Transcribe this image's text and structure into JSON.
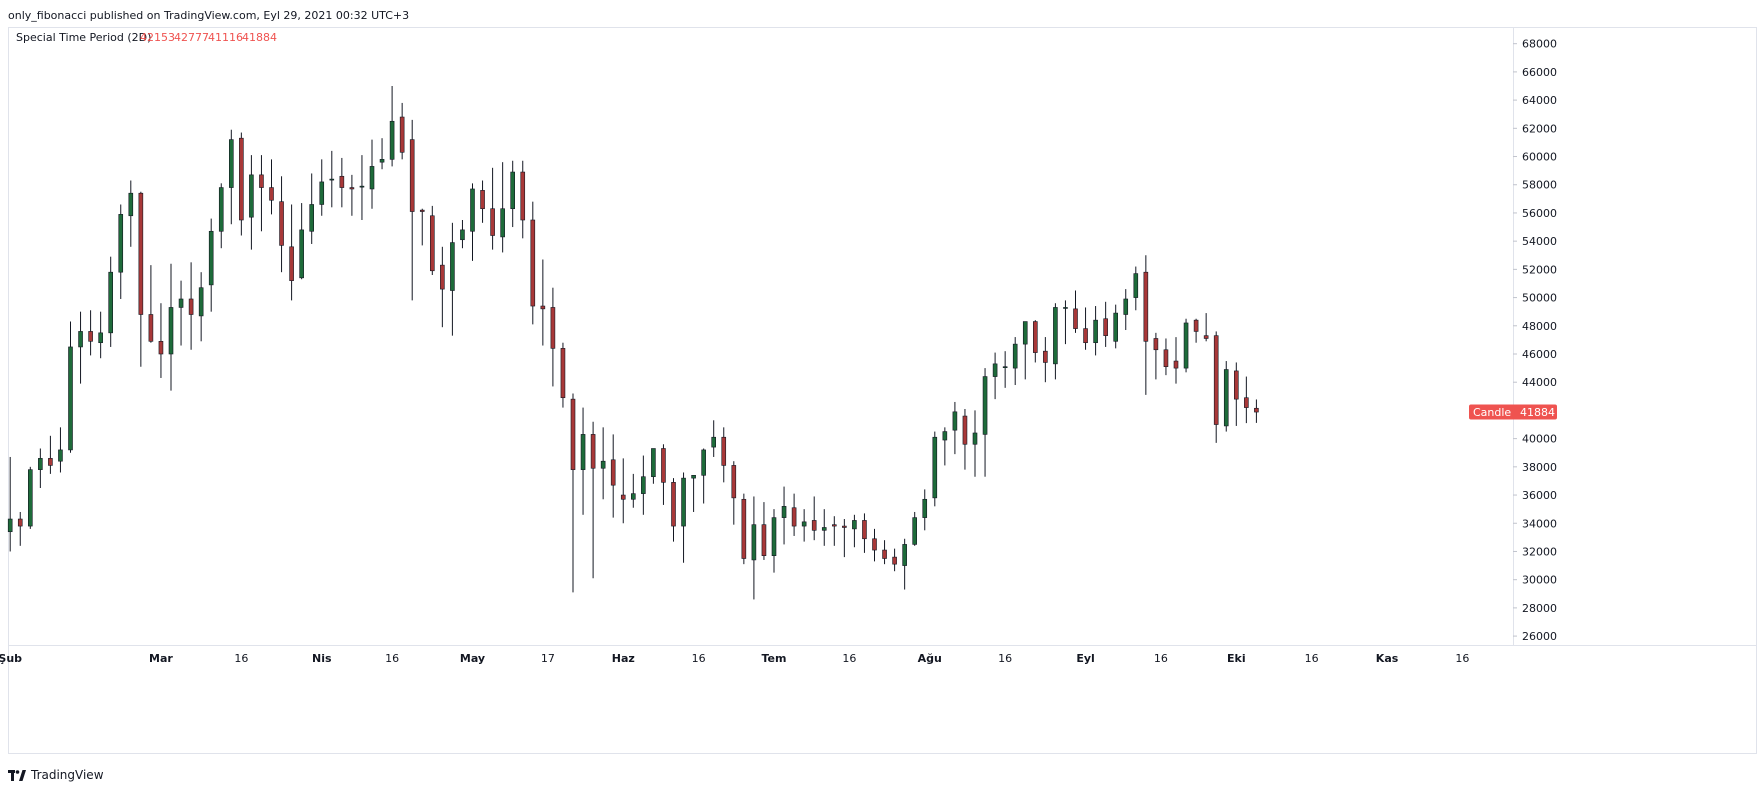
{
  "header": {
    "publish_line": "only_fibonacci published on TradingView.com, Eyl 29, 2021 00:32 UTC+3"
  },
  "legend": {
    "symbol": "Special Time Period (2D)",
    "open": "42153",
    "high": "42777",
    "low": "41116",
    "close": "41884"
  },
  "price_label": {
    "name": "Candle",
    "value": "41884"
  },
  "footer": {
    "brand": "TradingView"
  },
  "colors": {
    "up": "#1e6b3a",
    "down": "#a83838",
    "wick": "#131722",
    "price_tag": "#ef5350",
    "legend_values": "#ef5350"
  },
  "chart_data": {
    "type": "candlestick",
    "title": "Special Time Period (2D)",
    "interval": "2D",
    "y_range": [
      25000,
      69000
    ],
    "y_ticks": [
      26000,
      28000,
      30000,
      32000,
      34000,
      36000,
      38000,
      40000,
      42000,
      44000,
      46000,
      48000,
      50000,
      52000,
      54000,
      56000,
      58000,
      60000,
      62000,
      64000,
      66000,
      68000
    ],
    "x_ticks": [
      {
        "label": "Şub",
        "index": 0,
        "bold": true
      },
      {
        "label": "Mar",
        "index": 15,
        "bold": true
      },
      {
        "label": "16",
        "index": 23,
        "bold": false
      },
      {
        "label": "Nis",
        "index": 31,
        "bold": true
      },
      {
        "label": "16",
        "index": 38,
        "bold": false
      },
      {
        "label": "May",
        "index": 46,
        "bold": true
      },
      {
        "label": "17",
        "index": 53.5,
        "bold": false
      },
      {
        "label": "Haz",
        "index": 61,
        "bold": true
      },
      {
        "label": "16",
        "index": 68.5,
        "bold": false
      },
      {
        "label": "Tem",
        "index": 76,
        "bold": true
      },
      {
        "label": "16",
        "index": 83.5,
        "bold": false
      },
      {
        "label": "Ağu",
        "index": 91.5,
        "bold": true
      },
      {
        "label": "16",
        "index": 99,
        "bold": false
      },
      {
        "label": "Eyl",
        "index": 107,
        "bold": true
      },
      {
        "label": "16",
        "index": 114.5,
        "bold": false
      },
      {
        "label": "Eki",
        "index": 122,
        "bold": true
      },
      {
        "label": "16",
        "index": 129.5,
        "bold": false
      },
      {
        "label": "Kas",
        "index": 137,
        "bold": true
      },
      {
        "label": "16",
        "index": 144.5,
        "bold": false
      }
    ],
    "x_range": [
      -0.2,
      149.8
    ],
    "grid": false,
    "candles": [
      [
        33400,
        38700,
        32000,
        34300
      ],
      [
        34300,
        34800,
        32400,
        33800
      ],
      [
        33800,
        38000,
        33600,
        37800
      ],
      [
        37800,
        39300,
        36500,
        38600
      ],
      [
        38600,
        40200,
        37500,
        38100
      ],
      [
        38400,
        40800,
        37600,
        39200
      ],
      [
        39200,
        48300,
        39000,
        46500
      ],
      [
        46500,
        49000,
        43900,
        47600
      ],
      [
        47600,
        49100,
        45900,
        46900
      ],
      [
        46800,
        49000,
        45700,
        47500
      ],
      [
        47500,
        52900,
        46500,
        51800
      ],
      [
        51800,
        56600,
        49900,
        55900
      ],
      [
        55800,
        58300,
        53600,
        57400
      ],
      [
        57400,
        57500,
        45100,
        48800
      ],
      [
        48800,
        52300,
        46800,
        46900
      ],
      [
        46900,
        49600,
        44300,
        46000
      ],
      [
        46000,
        52400,
        43400,
        49300
      ],
      [
        49300,
        51200,
        46600,
        49900
      ],
      [
        49900,
        52500,
        46300,
        48800
      ],
      [
        48700,
        51800,
        46900,
        50700
      ],
      [
        50900,
        55600,
        49000,
        54700
      ],
      [
        54700,
        58100,
        53500,
        57800
      ],
      [
        57800,
        61900,
        55200,
        61200
      ],
      [
        61300,
        61700,
        54400,
        55500
      ],
      [
        55700,
        60100,
        53400,
        58700
      ],
      [
        58700,
        60100,
        54700,
        57800
      ],
      [
        57800,
        59800,
        55900,
        56900
      ],
      [
        56800,
        58600,
        51800,
        53700
      ],
      [
        53600,
        56600,
        49800,
        51200
      ],
      [
        51400,
        56700,
        51300,
        54800
      ],
      [
        54700,
        58800,
        53800,
        56600
      ],
      [
        56600,
        59800,
        55800,
        58200
      ],
      [
        58400,
        60400,
        56400,
        58400
      ],
      [
        58600,
        59900,
        56400,
        57800
      ],
      [
        57800,
        58700,
        55800,
        57700
      ],
      [
        57900,
        60100,
        55500,
        57900
      ],
      [
        57700,
        61200,
        56300,
        59300
      ],
      [
        59600,
        61300,
        59100,
        59800
      ],
      [
        59800,
        65000,
        59300,
        62500
      ],
      [
        62800,
        63800,
        59800,
        60300
      ],
      [
        61200,
        62600,
        49800,
        56100
      ],
      [
        56200,
        56300,
        53700,
        56100
      ],
      [
        55800,
        56500,
        51600,
        51900
      ],
      [
        52300,
        53600,
        47900,
        50600
      ],
      [
        50500,
        55300,
        47300,
        53900
      ],
      [
        54100,
        55500,
        53500,
        54800
      ],
      [
        54700,
        58100,
        52600,
        57700
      ],
      [
        57600,
        58300,
        55300,
        56300
      ],
      [
        56300,
        59200,
        53400,
        54400
      ],
      [
        54300,
        59600,
        53200,
        56300
      ],
      [
        56300,
        59700,
        55000,
        58900
      ],
      [
        58900,
        59700,
        54200,
        55500
      ],
      [
        55500,
        56800,
        48100,
        49400
      ],
      [
        49400,
        52700,
        46600,
        49200
      ],
      [
        49300,
        50700,
        43700,
        46400
      ],
      [
        46400,
        46800,
        42200,
        42900
      ],
      [
        42800,
        43200,
        29100,
        37800
      ],
      [
        37800,
        42200,
        34600,
        40300
      ],
      [
        40300,
        41200,
        30100,
        37900
      ],
      [
        37900,
        40800,
        35700,
        38400
      ],
      [
        38500,
        40300,
        34400,
        36700
      ],
      [
        36000,
        38600,
        34000,
        35700
      ],
      [
        35700,
        37500,
        35100,
        36100
      ],
      [
        36100,
        38800,
        34600,
        37300
      ],
      [
        37300,
        38900,
        36800,
        39300
      ],
      [
        39300,
        39600,
        35300,
        36900
      ],
      [
        36900,
        37200,
        32700,
        33800
      ],
      [
        33800,
        37600,
        31200,
        37200
      ],
      [
        37200,
        37400,
        34800,
        37400
      ],
      [
        37400,
        39300,
        35400,
        39200
      ],
      [
        39400,
        41300,
        38700,
        40100
      ],
      [
        40100,
        40800,
        36900,
        38100
      ],
      [
        38100,
        38400,
        33900,
        35800
      ],
      [
        35700,
        36100,
        31100,
        31500
      ],
      [
        31400,
        35900,
        28600,
        33900
      ],
      [
        33900,
        35500,
        31400,
        31700
      ],
      [
        31700,
        35000,
        30500,
        34400
      ],
      [
        34400,
        36600,
        32500,
        35200
      ],
      [
        35100,
        36100,
        33100,
        33800
      ],
      [
        33800,
        35000,
        32700,
        34100
      ],
      [
        34200,
        35900,
        32800,
        33500
      ],
      [
        33500,
        35000,
        32400,
        33700
      ],
      [
        33900,
        34500,
        32400,
        33800
      ],
      [
        33800,
        34300,
        31600,
        33700
      ],
      [
        33600,
        34600,
        32300,
        34200
      ],
      [
        34200,
        34700,
        31900,
        32900
      ],
      [
        32900,
        33600,
        31300,
        32100
      ],
      [
        32100,
        32800,
        31100,
        31500
      ],
      [
        31600,
        32200,
        30600,
        31100
      ],
      [
        31000,
        32900,
        29300,
        32500
      ],
      [
        32500,
        34800,
        32400,
        34400
      ],
      [
        34400,
        36400,
        33500,
        35700
      ],
      [
        35800,
        40500,
        35200,
        40100
      ],
      [
        39900,
        40800,
        38100,
        40500
      ],
      [
        40600,
        42600,
        38900,
        41900
      ],
      [
        41600,
        42100,
        37800,
        39600
      ],
      [
        39600,
        42000,
        37300,
        40400
      ],
      [
        40300,
        45000,
        37300,
        44400
      ],
      [
        44400,
        46100,
        42800,
        45300
      ],
      [
        45100,
        46200,
        43600,
        45100
      ],
      [
        45000,
        47200,
        43800,
        46700
      ],
      [
        46700,
        48200,
        44200,
        48300
      ],
      [
        48300,
        48400,
        45400,
        46100
      ],
      [
        46200,
        47200,
        44000,
        45400
      ],
      [
        45300,
        49600,
        44200,
        49300
      ],
      [
        49300,
        49800,
        46700,
        49300
      ],
      [
        49200,
        50500,
        47500,
        47800
      ],
      [
        47800,
        49300,
        46300,
        46800
      ],
      [
        46800,
        49400,
        45900,
        48400
      ],
      [
        48500,
        49700,
        46500,
        47300
      ],
      [
        46900,
        49500,
        46400,
        48900
      ],
      [
        48800,
        50600,
        47700,
        49900
      ],
      [
        50000,
        52200,
        49100,
        51700
      ],
      [
        51800,
        53000,
        43100,
        46900
      ],
      [
        47100,
        47500,
        44200,
        46300
      ],
      [
        46300,
        47100,
        44500,
        45100
      ],
      [
        45500,
        47200,
        43900,
        45000
      ],
      [
        45000,
        48500,
        44700,
        48200
      ],
      [
        48400,
        48500,
        46800,
        47600
      ],
      [
        47300,
        48900,
        46900,
        47100
      ],
      [
        47300,
        47600,
        39700,
        41000
      ],
      [
        40900,
        45500,
        40500,
        44900
      ],
      [
        44800,
        45400,
        40900,
        42800
      ],
      [
        42900,
        44400,
        41100,
        42200
      ],
      [
        42153,
        42777,
        41116,
        41884
      ]
    ]
  }
}
